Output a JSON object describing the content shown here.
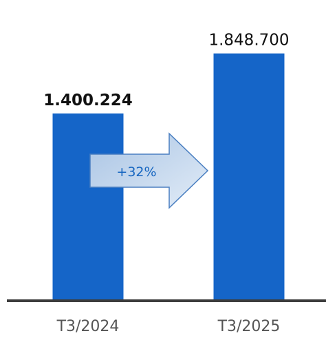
{
  "chart_data": {
    "type": "bar",
    "categories": [
      "T3/2024",
      "T3/2025"
    ],
    "values": [
      1400224,
      1848700
    ],
    "value_labels": [
      "1.400.224",
      "1.848.700"
    ],
    "ylim": [
      0,
      1960000
    ],
    "grid": false,
    "annotation": {
      "type": "arrow",
      "from": "T3/2024",
      "to": "T3/2025",
      "label": "+32%"
    }
  },
  "colors": {
    "bar": "#1565c8",
    "axis": "#3c3c3c",
    "arrow_fill_start": "#a9c4e4",
    "arrow_fill_end": "#e2ecf7",
    "arrow_stroke": "#4a7fc1",
    "arrow_text": "#1565c0"
  }
}
